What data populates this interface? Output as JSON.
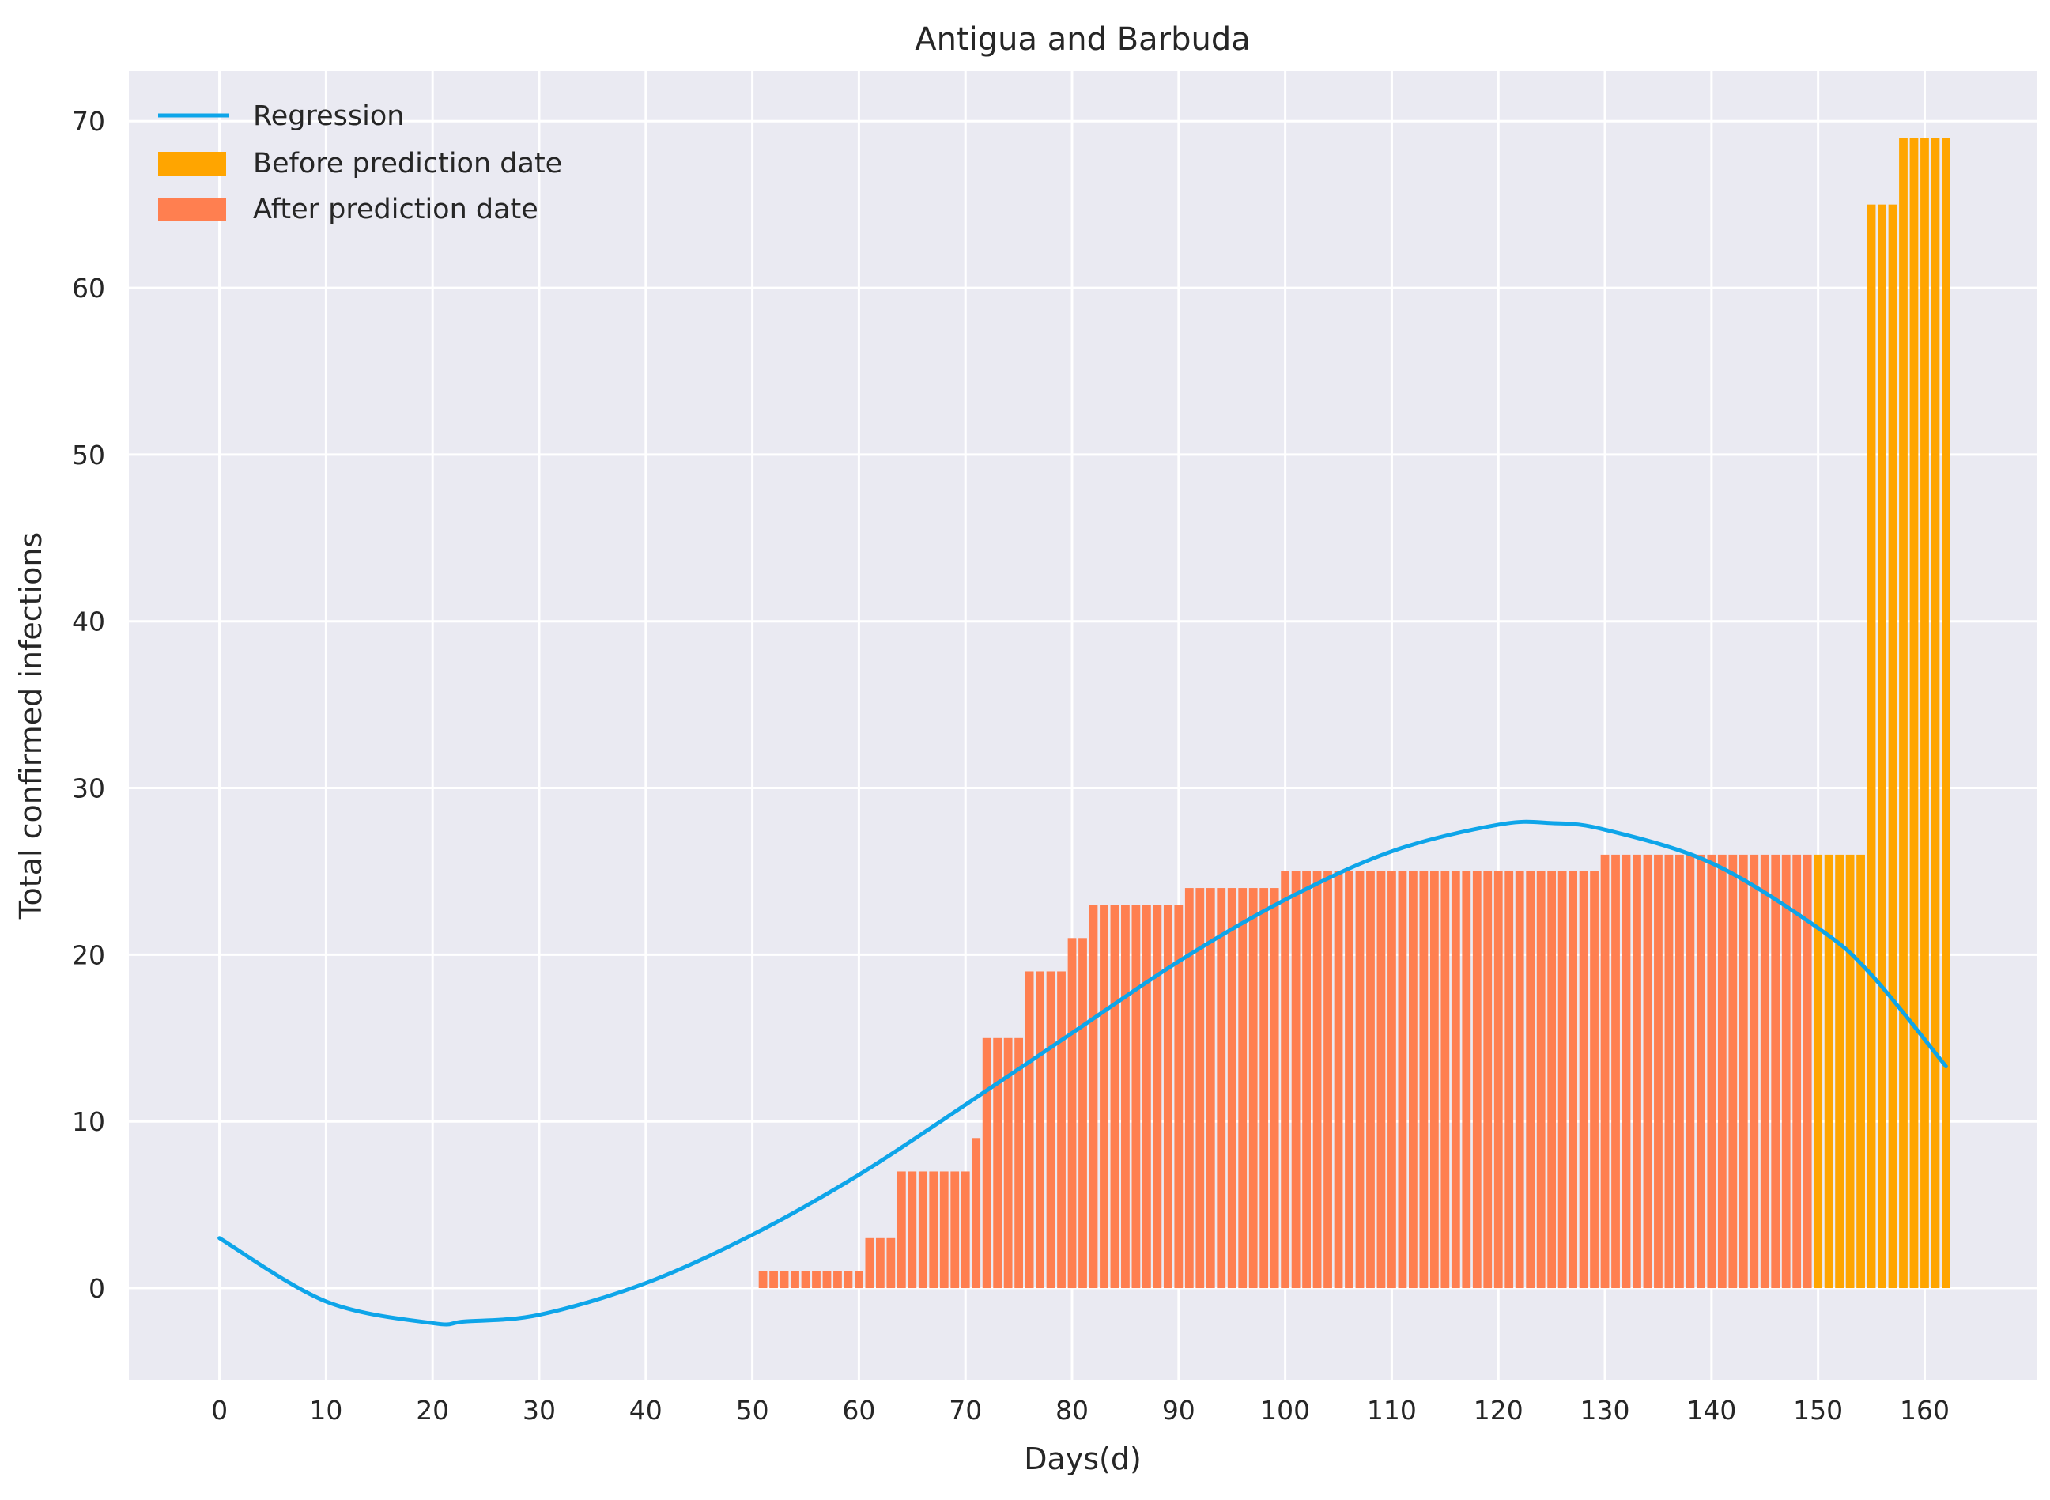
{
  "chart_data": {
    "type": "bar",
    "title": "Antigua and Barbuda",
    "xlabel": "Days(d)",
    "ylabel": "Total confirmed infections",
    "xlim": [
      -8.5,
      170.5
    ],
    "ylim": [
      -5.5,
      73
    ],
    "xticks": [
      0,
      10,
      20,
      30,
      40,
      50,
      60,
      70,
      80,
      90,
      100,
      110,
      120,
      130,
      140,
      150,
      160
    ],
    "yticks": [
      0,
      10,
      20,
      30,
      40,
      50,
      60,
      70
    ],
    "grid": true,
    "legend_position": "top-left",
    "colors": {
      "background": "#eaeaf2",
      "grid": "#ffffff",
      "regression": "#0ea5e9",
      "before": "#ffa500",
      "after": "#ff7f50"
    },
    "legend": [
      "Regression",
      "Before prediction date",
      "After prediction date"
    ],
    "series": [
      {
        "name": "After prediction date",
        "x_start": 51,
        "values": [
          1,
          1,
          1,
          1,
          1,
          1,
          1,
          1,
          1,
          1,
          3,
          3,
          3,
          7,
          7,
          7,
          7,
          7,
          7,
          7,
          9,
          15,
          15,
          15,
          15,
          19,
          19,
          19,
          19,
          21,
          21,
          23,
          23,
          23,
          23,
          23,
          23,
          23,
          23,
          23,
          24,
          24,
          24,
          24,
          24,
          24,
          24,
          24,
          24,
          25,
          25,
          25,
          25,
          25,
          25,
          25,
          25,
          25,
          25,
          25,
          25,
          25,
          25,
          25,
          25,
          25,
          25,
          25,
          25,
          25,
          25,
          25,
          25,
          25,
          25,
          25,
          25,
          25,
          25,
          26,
          26,
          26,
          26,
          26,
          26,
          26,
          26,
          26,
          26,
          26,
          26,
          26,
          26,
          26,
          26,
          26,
          26,
          26,
          26
        ]
      },
      {
        "name": "Before prediction date",
        "x_start": 150,
        "values": [
          26,
          26,
          26,
          26,
          26,
          65,
          65,
          65,
          69,
          69,
          69,
          69,
          69
        ]
      },
      {
        "name": "Regression",
        "points": [
          [
            0,
            3.0
          ],
          [
            10,
            -0.8
          ],
          [
            20,
            -2.1
          ],
          [
            23,
            -2.0
          ],
          [
            30,
            -1.6
          ],
          [
            40,
            0.3
          ],
          [
            50,
            3.2
          ],
          [
            60,
            6.8
          ],
          [
            70,
            11.0
          ],
          [
            80,
            15.3
          ],
          [
            90,
            19.6
          ],
          [
            100,
            23.3
          ],
          [
            110,
            26.2
          ],
          [
            120,
            27.8
          ],
          [
            125,
            27.9
          ],
          [
            130,
            27.5
          ],
          [
            140,
            25.5
          ],
          [
            150,
            21.6
          ],
          [
            155,
            18.8
          ],
          [
            162,
            13.3
          ]
        ]
      }
    ]
  }
}
